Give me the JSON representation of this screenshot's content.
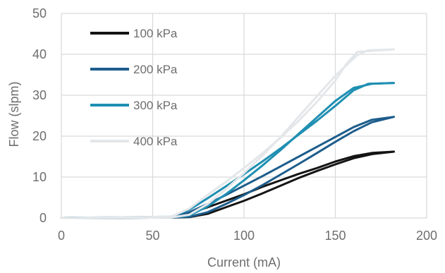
{
  "chart_data": {
    "type": "line",
    "title": "",
    "xlabel": "Current (mA)",
    "ylabel": "Flow (slpm)",
    "xlim": [
      0,
      200
    ],
    "ylim": [
      0,
      50
    ],
    "x_ticks": [
      "0",
      "50",
      "100",
      "150",
      "200"
    ],
    "y_ticks": [
      "0",
      "10",
      "20",
      "30",
      "40",
      "50"
    ],
    "grid": true,
    "legend_position": "top-left",
    "series": [
      {
        "name": "100 kPa",
        "color": "#141414",
        "up": [
          [
            0,
            0
          ],
          [
            60,
            0.2
          ],
          [
            70,
            1.2
          ],
          [
            80,
            2.6
          ],
          [
            90,
            4.2
          ],
          [
            100,
            5.8
          ],
          [
            110,
            7.6
          ],
          [
            120,
            9.2
          ],
          [
            130,
            10.8
          ],
          [
            140,
            12.2
          ],
          [
            150,
            13.8
          ],
          [
            160,
            15.1
          ],
          [
            170,
            15.9
          ],
          [
            182,
            16.2
          ]
        ],
        "down": [
          [
            182,
            16.2
          ],
          [
            170,
            15.6
          ],
          [
            160,
            14.6
          ],
          [
            150,
            13.1
          ],
          [
            140,
            11.5
          ],
          [
            130,
            9.8
          ],
          [
            120,
            7.9
          ],
          [
            110,
            6.0
          ],
          [
            100,
            4.2
          ],
          [
            90,
            2.6
          ],
          [
            80,
            1.0
          ],
          [
            70,
            0.2
          ],
          [
            60,
            0.1
          ],
          [
            0,
            0
          ]
        ]
      },
      {
        "name": "200 kPa",
        "color": "#1d5d8c",
        "up": [
          [
            0,
            0
          ],
          [
            60,
            0.2
          ],
          [
            70,
            1.4
          ],
          [
            80,
            3.4
          ],
          [
            90,
            5.6
          ],
          [
            100,
            7.9
          ],
          [
            110,
            10.2
          ],
          [
            120,
            12.6
          ],
          [
            130,
            15.0
          ],
          [
            140,
            17.4
          ],
          [
            150,
            19.8
          ],
          [
            160,
            22.2
          ],
          [
            170,
            24.0
          ],
          [
            182,
            24.7
          ]
        ],
        "down": [
          [
            182,
            24.7
          ],
          [
            170,
            23.4
          ],
          [
            160,
            21.2
          ],
          [
            150,
            18.6
          ],
          [
            140,
            15.9
          ],
          [
            130,
            13.2
          ],
          [
            120,
            10.6
          ],
          [
            110,
            8.0
          ],
          [
            100,
            5.6
          ],
          [
            90,
            3.4
          ],
          [
            80,
            1.4
          ],
          [
            70,
            0.3
          ],
          [
            60,
            0.1
          ],
          [
            0,
            0
          ]
        ]
      },
      {
        "name": "300 kPa",
        "color": "#1f8fb2",
        "up": [
          [
            0,
            0
          ],
          [
            60,
            0.3
          ],
          [
            70,
            2.0
          ],
          [
            80,
            4.8
          ],
          [
            90,
            7.7
          ],
          [
            100,
            10.7
          ],
          [
            110,
            13.8
          ],
          [
            120,
            17.0
          ],
          [
            130,
            20.4
          ],
          [
            140,
            23.8
          ],
          [
            150,
            27.4
          ],
          [
            160,
            31.2
          ],
          [
            168,
            32.8
          ],
          [
            182,
            33.0
          ]
        ],
        "down": [
          [
            182,
            33.0
          ],
          [
            170,
            32.8
          ],
          [
            160,
            31.8
          ],
          [
            150,
            28.6
          ],
          [
            140,
            24.6
          ],
          [
            130,
            20.6
          ],
          [
            120,
            16.6
          ],
          [
            110,
            12.8
          ],
          [
            100,
            9.2
          ],
          [
            90,
            5.8
          ],
          [
            80,
            2.8
          ],
          [
            70,
            0.6
          ],
          [
            60,
            0.1
          ],
          [
            0,
            0
          ]
        ]
      },
      {
        "name": "400 kPa",
        "color": "#e4e7ea",
        "up": [
          [
            0,
            0
          ],
          [
            60,
            0.3
          ],
          [
            70,
            2.3
          ],
          [
            80,
            5.6
          ],
          [
            90,
            8.8
          ],
          [
            100,
            12.2
          ],
          [
            110,
            15.8
          ],
          [
            120,
            19.6
          ],
          [
            130,
            23.8
          ],
          [
            140,
            28.4
          ],
          [
            150,
            33.6
          ],
          [
            156,
            37.6
          ],
          [
            162,
            40.6
          ],
          [
            182,
            41.2
          ]
        ],
        "down": [
          [
            182,
            41.2
          ],
          [
            168,
            41.0
          ],
          [
            162,
            39.8
          ],
          [
            150,
            34.8
          ],
          [
            140,
            29.8
          ],
          [
            130,
            24.8
          ],
          [
            120,
            19.8
          ],
          [
            110,
            15.2
          ],
          [
            100,
            11.0
          ],
          [
            90,
            7.0
          ],
          [
            80,
            3.4
          ],
          [
            70,
            0.8
          ],
          [
            60,
            0.1
          ],
          [
            0,
            0
          ]
        ]
      }
    ]
  }
}
